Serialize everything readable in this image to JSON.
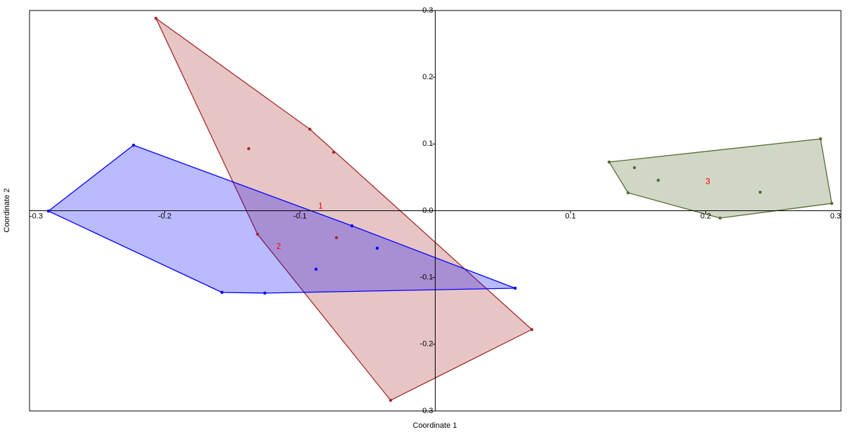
{
  "chart_data": {
    "type": "scatter",
    "xlabel": "Coordinate 1",
    "ylabel": "Coordinate 2",
    "xlim": [
      -0.3,
      0.3
    ],
    "ylim": [
      -0.3,
      0.3
    ],
    "xticks": [
      -0.3,
      -0.2,
      -0.1,
      0.1,
      0.2,
      0.3
    ],
    "yticks": [
      -0.3,
      -0.2,
      -0.1,
      {
        "value": 0,
        "label": "0.0"
      },
      0.1,
      0.2,
      0.3
    ],
    "convex_hulls": true,
    "series": [
      {
        "name": "1",
        "color": "#a52a2a",
        "x": [
          -0.2065,
          -0.0927,
          -0.0751,
          -0.1379,
          -0.1314,
          -0.073,
          -0.033,
          0.0714
        ],
        "y": [
          0.2883,
          0.1222,
          0.0877,
          0.093,
          -0.0352,
          -0.0404,
          -0.2841,
          -0.178
        ]
      },
      {
        "name": "2",
        "color": "#0000ff",
        "x": [
          -0.2231,
          -0.286,
          -0.1577,
          -0.126,
          0.0591,
          -0.0616,
          -0.0429,
          -0.0881
        ],
        "y": [
          0.0982,
          -0.0005,
          -0.1224,
          -0.1234,
          -0.1161,
          -0.0226,
          -0.0562,
          -0.0877
        ]
      },
      {
        "name": "3",
        "color": "#556b2f",
        "x": [
          0.1286,
          0.1473,
          0.1649,
          0.1426,
          0.2106,
          0.2403,
          0.2932,
          0.2849
        ],
        "y": [
          0.073,
          0.0646,
          0.0457,
          0.0268,
          -0.011,
          0.0278,
          0.011,
          0.1077
        ]
      }
    ]
  }
}
